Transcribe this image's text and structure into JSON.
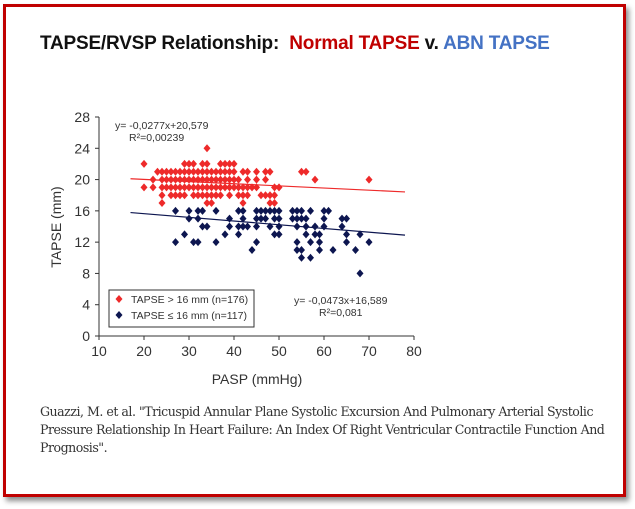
{
  "title": {
    "part1": "TAPSE/RVSP Relationship:",
    "part2": "Normal TAPSE",
    "part3": "v.",
    "part4": "ABN TAPSE"
  },
  "colors": {
    "frame": "#c00000",
    "normal": "#c00000",
    "abnormal": "#4472c4",
    "series_red": "#ee2a2a",
    "series_navy": "#0d1650"
  },
  "caption": "Guazzi, M. et al. \"Tricuspid Annular Plane Systolic Excursion And Pulmonary Arterial Systolic Pressure Relationship In Heart Failure: An Index Of Right Ventricular Contractile Function And Prognosis\".",
  "chart_data": {
    "type": "scatter",
    "xlabel": "PASP (mmHg)",
    "ylabel": "TAPSE (mm)",
    "xlim": [
      10,
      80
    ],
    "ylim": [
      0,
      28
    ],
    "xticks": [
      10,
      20,
      30,
      40,
      50,
      60,
      70,
      80
    ],
    "yticks": [
      0,
      4,
      8,
      12,
      16,
      20,
      24,
      28
    ],
    "grid": false,
    "legend_position": "bottom-left",
    "series": [
      {
        "name": "TAPSE > 16 mm (n=176)",
        "color": "#ee2a2a",
        "marker": "diamond",
        "trendline": {
          "slope": -0.0277,
          "intercept": 20.579,
          "x_range": [
            17,
            78
          ],
          "equation": "y= -0,0277x+20,579",
          "r2": "R²=0,00239"
        },
        "points": [
          [
            20,
            22
          ],
          [
            20,
            19
          ],
          [
            22,
            20
          ],
          [
            22,
            19
          ],
          [
            23,
            21
          ],
          [
            24,
            21
          ],
          [
            24,
            20
          ],
          [
            24,
            19
          ],
          [
            24,
            18
          ],
          [
            24,
            17
          ],
          [
            25,
            21
          ],
          [
            25,
            20
          ],
          [
            25,
            19
          ],
          [
            26,
            21
          ],
          [
            26,
            20
          ],
          [
            26,
            19
          ],
          [
            26,
            18
          ],
          [
            27,
            21
          ],
          [
            27,
            20
          ],
          [
            27,
            19
          ],
          [
            27,
            18
          ],
          [
            28,
            21
          ],
          [
            28,
            20
          ],
          [
            28,
            19
          ],
          [
            28,
            18
          ],
          [
            29,
            22
          ],
          [
            29,
            21
          ],
          [
            29,
            20
          ],
          [
            29,
            19
          ],
          [
            29,
            18
          ],
          [
            30,
            22
          ],
          [
            30,
            21
          ],
          [
            30,
            20
          ],
          [
            30,
            19
          ],
          [
            31,
            22
          ],
          [
            31,
            21
          ],
          [
            31,
            20
          ],
          [
            31,
            19
          ],
          [
            31,
            18
          ],
          [
            32,
            21
          ],
          [
            32,
            20
          ],
          [
            32,
            19
          ],
          [
            32,
            18
          ],
          [
            33,
            22
          ],
          [
            33,
            21
          ],
          [
            33,
            20
          ],
          [
            33,
            19
          ],
          [
            33,
            18
          ],
          [
            34,
            24
          ],
          [
            34,
            22
          ],
          [
            34,
            21
          ],
          [
            34,
            20
          ],
          [
            34,
            19
          ],
          [
            34,
            18
          ],
          [
            34,
            17
          ],
          [
            35,
            21
          ],
          [
            35,
            20
          ],
          [
            35,
            19
          ],
          [
            35,
            18
          ],
          [
            35,
            17
          ],
          [
            36,
            21
          ],
          [
            36,
            20
          ],
          [
            36,
            19
          ],
          [
            36,
            18
          ],
          [
            37,
            22
          ],
          [
            37,
            21
          ],
          [
            37,
            20
          ],
          [
            37,
            19
          ],
          [
            37,
            18
          ],
          [
            38,
            22
          ],
          [
            38,
            21
          ],
          [
            38,
            20
          ],
          [
            38,
            19
          ],
          [
            39,
            22
          ],
          [
            39,
            21
          ],
          [
            39,
            20
          ],
          [
            39,
            19
          ],
          [
            39,
            18
          ],
          [
            40,
            22
          ],
          [
            40,
            21
          ],
          [
            40,
            20
          ],
          [
            40,
            19
          ],
          [
            41,
            20
          ],
          [
            41,
            19
          ],
          [
            41,
            18
          ],
          [
            42,
            21
          ],
          [
            42,
            19
          ],
          [
            42,
            18
          ],
          [
            42,
            17
          ],
          [
            43,
            21
          ],
          [
            43,
            20
          ],
          [
            43,
            19
          ],
          [
            43,
            18
          ],
          [
            44,
            19
          ],
          [
            45,
            21
          ],
          [
            45,
            20
          ],
          [
            45,
            19
          ],
          [
            46,
            18
          ],
          [
            47,
            21
          ],
          [
            47,
            20
          ],
          [
            47,
            18
          ],
          [
            48,
            21
          ],
          [
            48,
            18
          ],
          [
            48,
            17
          ],
          [
            49,
            19
          ],
          [
            49,
            18
          ],
          [
            49,
            17
          ],
          [
            50,
            19
          ],
          [
            55,
            21
          ],
          [
            56,
            21
          ],
          [
            58,
            20
          ],
          [
            70,
            20
          ]
        ]
      },
      {
        "name": "TAPSE ≤ 16 mm (n=117)",
        "color": "#0d1650",
        "marker": "diamond",
        "trendline": {
          "slope": -0.0473,
          "intercept": 16.589,
          "x_range": [
            17,
            78
          ],
          "equation": "y= -0,0473x+16,589",
          "r2": "R²=0,081"
        },
        "points": [
          [
            27,
            16
          ],
          [
            27,
            12
          ],
          [
            29,
            13
          ],
          [
            30,
            16
          ],
          [
            30,
            15
          ],
          [
            31,
            12
          ],
          [
            32,
            16
          ],
          [
            32,
            15
          ],
          [
            32,
            12
          ],
          [
            33,
            16
          ],
          [
            33,
            14
          ],
          [
            34,
            14
          ],
          [
            36,
            16
          ],
          [
            36,
            12
          ],
          [
            38,
            13
          ],
          [
            39,
            15
          ],
          [
            39,
            14
          ],
          [
            41,
            16
          ],
          [
            41,
            14
          ],
          [
            41,
            13
          ],
          [
            42,
            16
          ],
          [
            42,
            15
          ],
          [
            42,
            14
          ],
          [
            43,
            14
          ],
          [
            44,
            11
          ],
          [
            45,
            16
          ],
          [
            45,
            15
          ],
          [
            45,
            14
          ],
          [
            45,
            12
          ],
          [
            46,
            16
          ],
          [
            46,
            15
          ],
          [
            47,
            16
          ],
          [
            47,
            15
          ],
          [
            48,
            16
          ],
          [
            48,
            14
          ],
          [
            49,
            16
          ],
          [
            49,
            15
          ],
          [
            49,
            13
          ],
          [
            50,
            16
          ],
          [
            50,
            15
          ],
          [
            50,
            14
          ],
          [
            50,
            13
          ],
          [
            53,
            16
          ],
          [
            53,
            15
          ],
          [
            54,
            16
          ],
          [
            54,
            15
          ],
          [
            54,
            14
          ],
          [
            54,
            12
          ],
          [
            54,
            11
          ],
          [
            55,
            16
          ],
          [
            55,
            15
          ],
          [
            55,
            11
          ],
          [
            55,
            10
          ],
          [
            56,
            15
          ],
          [
            56,
            14
          ],
          [
            56,
            13
          ],
          [
            57,
            16
          ],
          [
            57,
            12
          ],
          [
            57,
            10
          ],
          [
            58,
            14
          ],
          [
            58,
            13
          ],
          [
            59,
            13
          ],
          [
            59,
            12
          ],
          [
            59,
            11
          ],
          [
            60,
            16
          ],
          [
            60,
            15
          ],
          [
            60,
            14
          ],
          [
            61,
            16
          ],
          [
            62,
            11
          ],
          [
            64,
            15
          ],
          [
            64,
            14
          ],
          [
            65,
            15
          ],
          [
            65,
            13
          ],
          [
            65,
            12
          ],
          [
            67,
            11
          ],
          [
            68,
            13
          ],
          [
            68,
            8
          ],
          [
            70,
            12
          ]
        ]
      }
    ]
  }
}
